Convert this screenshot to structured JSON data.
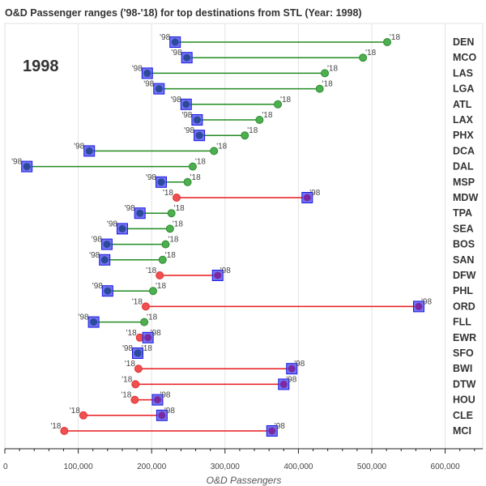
{
  "chart_data": {
    "type": "dumbbell",
    "title": "O&D Passenger ranges ('98-'18) for top destinations from STL (Year: 1998)",
    "year_label": "1998",
    "xlabel": "O&D Passengers",
    "xlim": [
      0,
      650000
    ],
    "xticks": [
      0,
      100000,
      200000,
      300000,
      400000,
      500000,
      600000
    ],
    "xtick_labels": [
      "0",
      "100,000",
      "200,000",
      "300,000",
      "400,000",
      "500,000",
      "600,000"
    ],
    "grid": "vertical",
    "label_1998": "'98",
    "label_2018": "'18",
    "colors": {
      "increase": "#228b22",
      "decrease": "#e8191d",
      "pt_green": "#4caf50",
      "pt_red": "#f05050",
      "box_fill": "#5a5af0",
      "box_stroke": "#1a1ae0",
      "inner_98_inc": "#2b4a9a",
      "inner_98_dec": "#7a2aa0"
    },
    "categories": [
      "DEN",
      "MCO",
      "LAS",
      "LGA",
      "ATL",
      "LAX",
      "PHX",
      "DCA",
      "DAL",
      "MSP",
      "MDW",
      "TPA",
      "SEA",
      "BOS",
      "SAN",
      "DFW",
      "PHL",
      "ORD",
      "FLL",
      "EWR",
      "SFO",
      "BWI",
      "DTW",
      "HOU",
      "CLE",
      "MCI"
    ],
    "series": [
      {
        "name": "1998",
        "values": [
          232000,
          248000,
          194000,
          210000,
          247000,
          262000,
          265000,
          115000,
          30000,
          213000,
          412000,
          184000,
          160000,
          139000,
          136000,
          290000,
          140000,
          564000,
          121000,
          195000,
          181000,
          391000,
          380000,
          208000,
          214000,
          364000
        ]
      },
      {
        "name": "2018",
        "values": [
          521000,
          488000,
          436000,
          429000,
          372000,
          347000,
          327000,
          285000,
          256000,
          249000,
          234000,
          227000,
          225000,
          219000,
          215000,
          211000,
          202000,
          192000,
          190000,
          184000,
          183000,
          182000,
          178000,
          177000,
          107000,
          81000
        ]
      }
    ]
  }
}
